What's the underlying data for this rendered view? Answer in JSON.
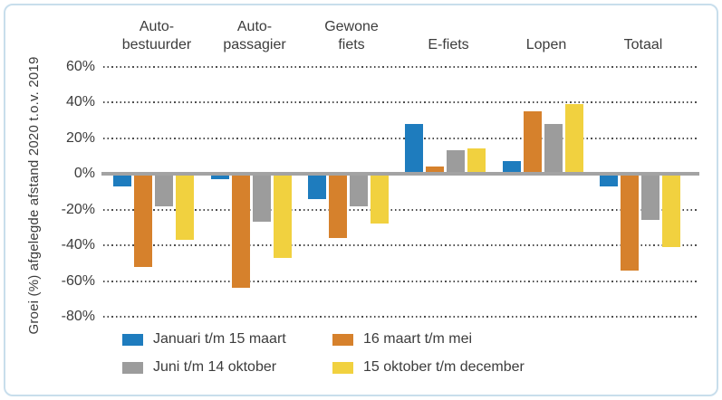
{
  "figure": {
    "frame_color": "#c8deec",
    "background": "#ffffff"
  },
  "y_axis": {
    "title": "Groei (%) afgelegde afstand 2020 t.o.v. 2019",
    "ticks": [
      {
        "label": "60%",
        "value": 60
      },
      {
        "label": "40%",
        "value": 40
      },
      {
        "label": "20%",
        "value": 20
      },
      {
        "label": "0%",
        "value": 0
      },
      {
        "label": "-20%",
        "value": -20
      },
      {
        "label": "-40%",
        "value": -40
      },
      {
        "label": "-60%",
        "value": -60
      },
      {
        "label": "-80%",
        "value": -80
      }
    ]
  },
  "chart_data": {
    "type": "bar",
    "title": "",
    "ylabel": "Groei (%) afgelegde afstand 2020 t.o.v. 2019",
    "ylim": [
      -80,
      60
    ],
    "grid": "horizontal-dotted",
    "legend_position": "bottom",
    "categories": [
      "Auto-bestuurder",
      "Auto-passagier",
      "Gewone fiets",
      "E-fiets",
      "Lopen",
      "Totaal"
    ],
    "category_label_lines": [
      [
        "Auto-",
        "bestuurder"
      ],
      [
        "Auto-",
        "passagier"
      ],
      [
        "Gewone",
        "fiets"
      ],
      [
        "E-fiets"
      ],
      [
        "Lopen"
      ],
      [
        "Totaal"
      ]
    ],
    "series": [
      {
        "name": "Januari t/m 15 maart",
        "color": "#1e7cbe",
        "values": [
          -7,
          -3,
          -14,
          28,
          7,
          -7
        ]
      },
      {
        "name": "16 maart t/m mei",
        "color": "#d6812c",
        "values": [
          -52,
          -64,
          -36,
          4,
          35,
          -54
        ]
      },
      {
        "name": "Juni t/m 14 oktober",
        "color": "#9c9c9c",
        "values": [
          -18,
          -27,
          -18,
          13,
          28,
          -26
        ]
      },
      {
        "name": "15 oktober t/m december",
        "color": "#f1d13f",
        "values": [
          -37,
          -47,
          -28,
          14,
          39,
          -41
        ]
      }
    ]
  }
}
